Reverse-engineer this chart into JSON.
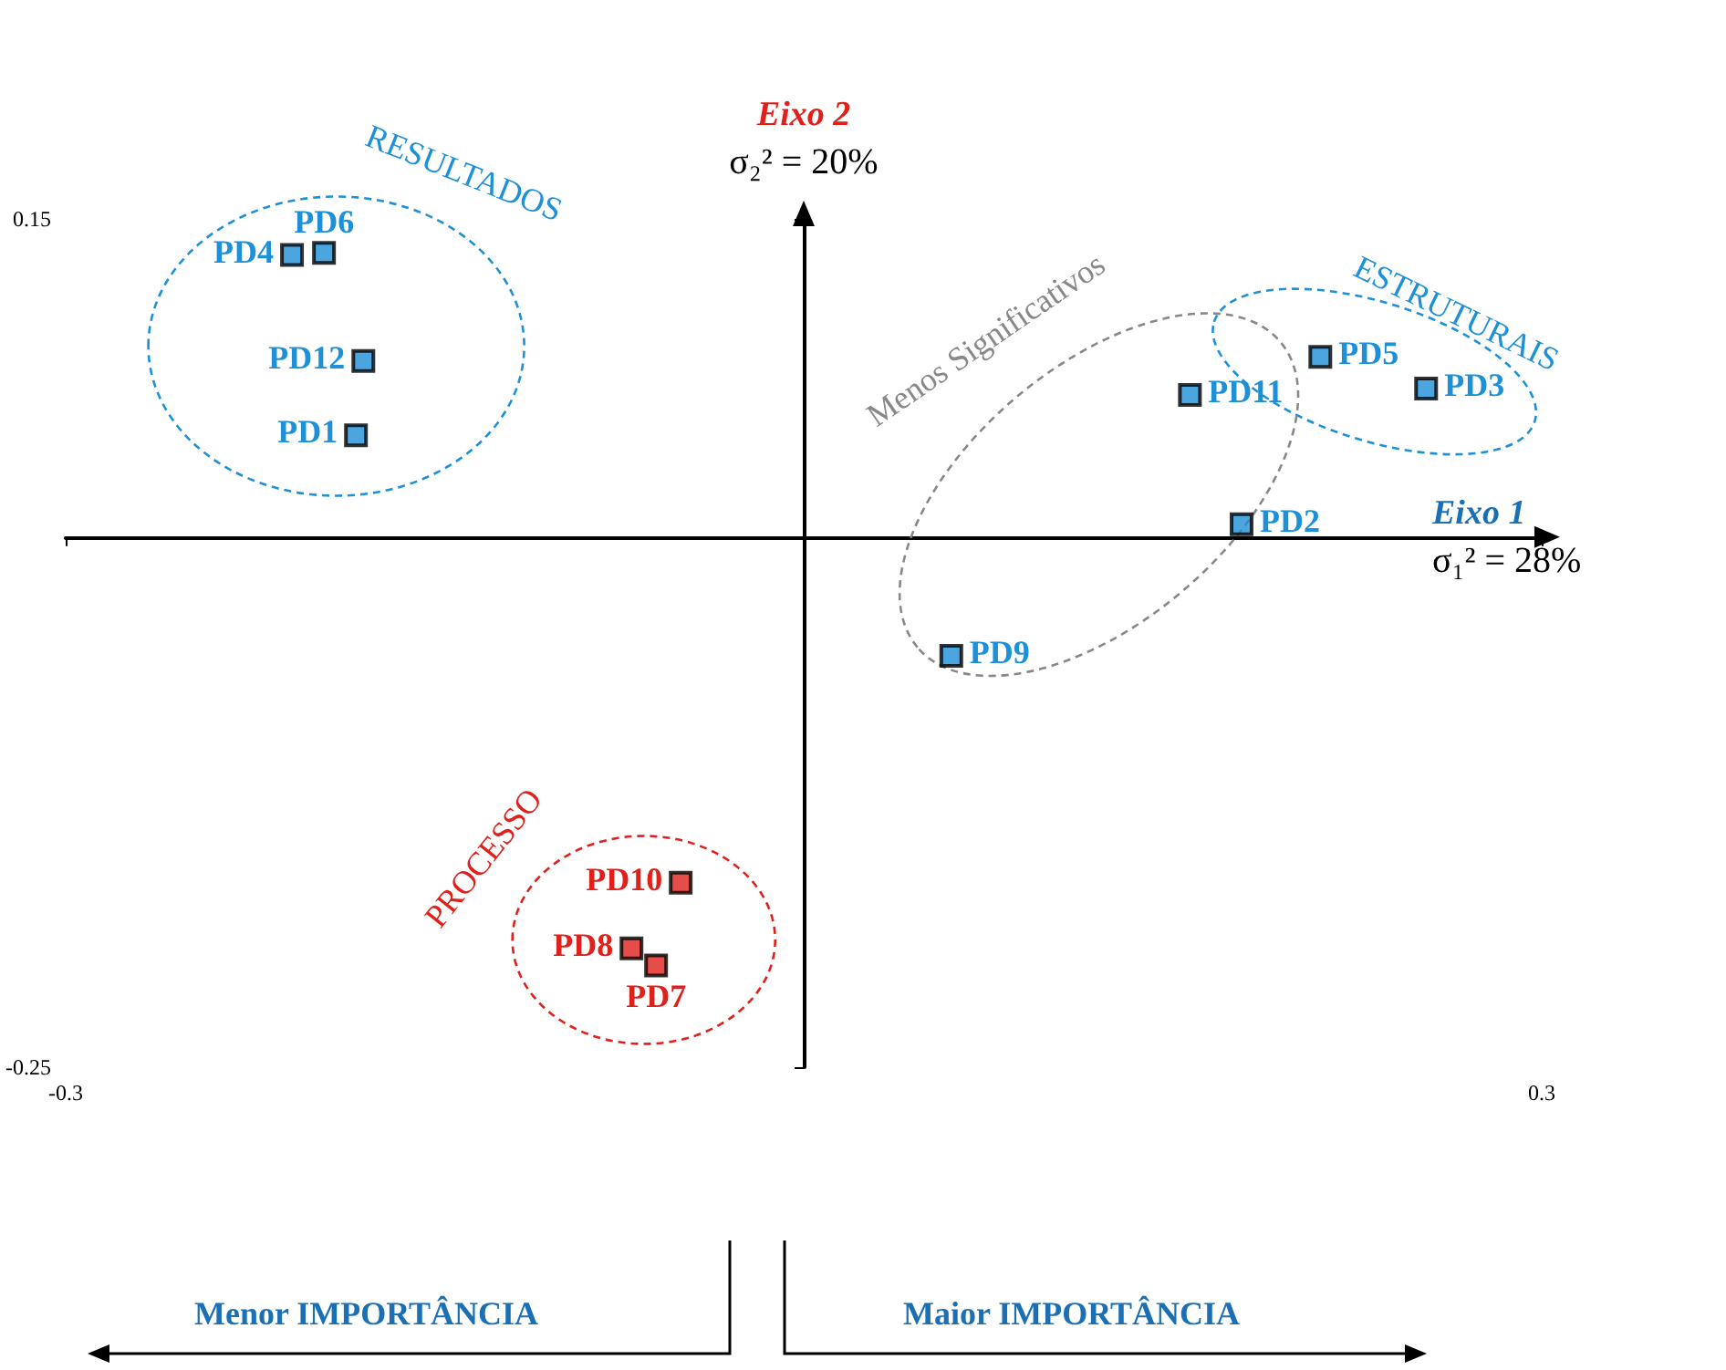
{
  "chart_data": {
    "type": "scatter",
    "xlabel": "Eixo 1\nσ₁² = 28%",
    "ylabel": "Eixo 2\nσ₂² = 20%",
    "xlim": [
      -0.3,
      0.3
    ],
    "ylim": [
      -0.25,
      0.15
    ],
    "xticks": [
      -0.3,
      0.3
    ],
    "yticks": [
      -0.25,
      0.15
    ],
    "grid": false,
    "marker": "square",
    "series": [
      {
        "color": "#1e90d8",
        "x": [
          -0.182,
          0.178,
          0.253,
          -0.208,
          0.21,
          -0.195,
          0.06,
          0.157,
          -0.179
        ],
        "values": [
          0.048,
          0.006,
          0.07,
          0.133,
          0.085,
          0.134,
          -0.056,
          0.067,
          0.083
        ]
      },
      {
        "color": "#e0201b",
        "x": [
          -0.06,
          -0.07,
          -0.05
        ],
        "values": [
          -0.202,
          -0.194,
          -0.163
        ]
      }
    ],
    "annotations": [
      {
        "text": "PD1",
        "x": -0.182,
        "y": 0.048
      },
      {
        "text": "PD2",
        "x": 0.178,
        "y": 0.006
      },
      {
        "text": "PD3",
        "x": 0.253,
        "y": 0.07
      },
      {
        "text": "PD4",
        "x": -0.208,
        "y": 0.133
      },
      {
        "text": "PD5",
        "x": 0.21,
        "y": 0.085
      },
      {
        "text": "PD6",
        "x": -0.195,
        "y": 0.134
      },
      {
        "text": "PD7",
        "x": -0.06,
        "y": -0.202
      },
      {
        "text": "PD8",
        "x": -0.07,
        "y": -0.194
      },
      {
        "text": "PD9",
        "x": 0.06,
        "y": -0.056
      },
      {
        "text": "PD10",
        "x": -0.05,
        "y": -0.163
      },
      {
        "text": "PD11",
        "x": 0.157,
        "y": 0.067
      },
      {
        "text": "PD12",
        "x": -0.179,
        "y": 0.083
      },
      "RESULTADOS",
      "ESTRUTURAIS",
      "Menos Significativos",
      "PROCESSO",
      "Menor IMPORTÂNCIA",
      "Maior IMPORTÂNCIA"
    ]
  }
}
